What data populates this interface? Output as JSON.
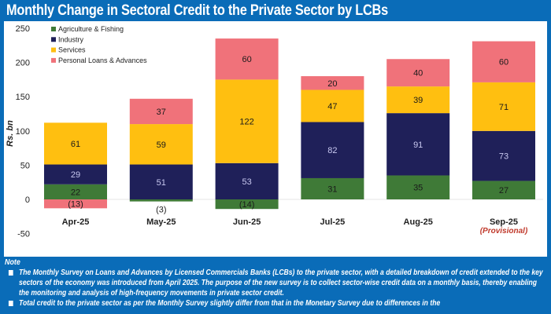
{
  "title": "Monthly Change in Sectoral Credit to the Private Sector by LCBs",
  "chart_data": {
    "type": "bar",
    "stacked": true,
    "title": "Monthly Change in Sectoral Credit to the Private Sector by LCBs",
    "xlabel": "",
    "ylabel": "Rs. bn",
    "ylim": [
      -50,
      250
    ],
    "yticks": [
      -50,
      0,
      50,
      100,
      150,
      200,
      250
    ],
    "grid": false,
    "legend_position": "top-left",
    "categories": [
      "Apr-25",
      "May-25",
      "Jun-25",
      "Jul-25",
      "Aug-25",
      "Sep-25"
    ],
    "category_notes": [
      "",
      "",
      "",
      "",
      "",
      "(Provisional)"
    ],
    "series": [
      {
        "name": "Agriculture & Fishing",
        "color": "#3f7a37",
        "label_color": "#1a1a1a",
        "values": [
          22,
          -3,
          -14,
          31,
          35,
          27
        ]
      },
      {
        "name": "Industry",
        "color": "#1f2059",
        "label_color": "#c8c8f0",
        "values": [
          29,
          51,
          53,
          82,
          91,
          73
        ]
      },
      {
        "name": "Services",
        "color": "#ffbf10",
        "label_color": "#1a1a1a",
        "values": [
          61,
          59,
          122,
          47,
          39,
          71
        ]
      },
      {
        "name": "Personal Loans & Advances",
        "color": "#f0727a",
        "label_color": "#1a1a1a",
        "values": [
          -13,
          37,
          60,
          20,
          40,
          60
        ]
      }
    ]
  },
  "note": {
    "heading": "Note",
    "items": [
      "The Monthly Survey on Loans and Advances by Licensed Commercials Banks (LCBs) to the private sector, with a detailed breakdown of credit extended to the key sectors of the economy was introduced from April 2025. The purpose of the new survey is to collect sector-wise credit data on a monthly basis, thereby enabling the monitoring and analysis of high-frequency movements in private sector credit.",
      "Total credit to the private sector as per the Monthly Survey slightly differ from that in the Monetary Survey due to differences in the"
    ]
  }
}
